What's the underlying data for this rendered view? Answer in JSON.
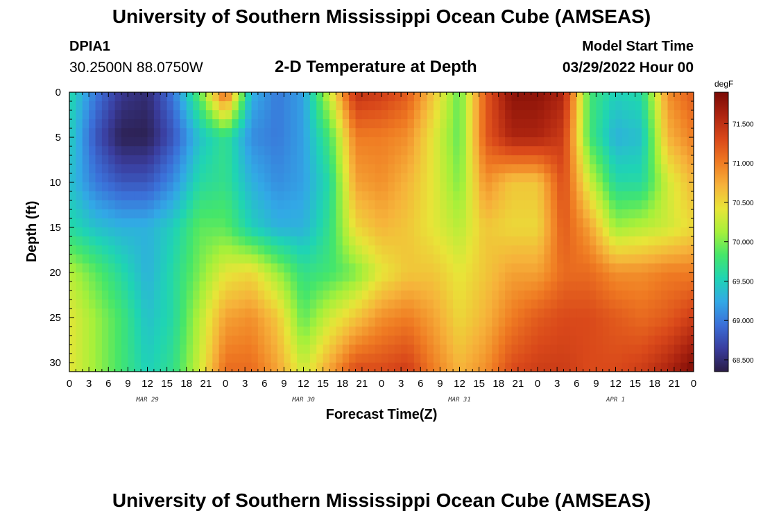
{
  "header": {
    "title": "University of Southern Mississippi Ocean Cube (AMSEAS)",
    "station": "DPIA1",
    "coords": "30.2500N  88.0750W",
    "subtitle": "2-D Temperature at Depth",
    "model_start_label": "Model Start Time",
    "model_start_value": "03/29/2022 Hour 00"
  },
  "footer": {
    "title": "University of Southern Mississippi Ocean Cube (AMSEAS)"
  },
  "colors": {
    "scale": [
      "#2a1c45",
      "#3a3d9e",
      "#3b6fd8",
      "#32a8e6",
      "#1fd4b4",
      "#45e66a",
      "#a6f03a",
      "#e8e538",
      "#f6b23a",
      "#ef7a22",
      "#d9481a",
      "#ad2410",
      "#7a0a05"
    ]
  },
  "chart_data": {
    "type": "heatmap",
    "xlabel": "Forecast Time(Z)",
    "ylabel": "Depth (ft)",
    "x_tick_labels": [
      "0",
      "3",
      "6",
      "9",
      "12",
      "15",
      "18",
      "21",
      "0",
      "3",
      "6",
      "9",
      "12",
      "15",
      "18",
      "21",
      "0",
      "3",
      "6",
      "9",
      "12",
      "15",
      "18",
      "21",
      "0",
      "3",
      "6",
      "9",
      "12",
      "15",
      "18",
      "21",
      "0"
    ],
    "day_labels": [
      {
        "label": "MAR 29",
        "hour": 12
      },
      {
        "label": "MAR 30",
        "hour": 36
      },
      {
        "label": "MAR 31",
        "hour": 60
      },
      {
        "label": "APR 1",
        "hour": 84
      }
    ],
    "x_range_hours": [
      0,
      96
    ],
    "y_ticks": [
      0,
      5,
      10,
      15,
      20,
      25,
      30
    ],
    "y_range_ft": [
      0,
      31
    ],
    "colorbar": {
      "unit": "degF",
      "min": 68.35,
      "max": 71.9,
      "ticks": [
        "68.500",
        "69.000",
        "69.500",
        "70.000",
        "70.500",
        "71.000",
        "71.500"
      ]
    },
    "hours": [
      0,
      4,
      8,
      12,
      16,
      20,
      24,
      28,
      32,
      36,
      40,
      44,
      48,
      52,
      56,
      60,
      64,
      68,
      72,
      76,
      80,
      84,
      88,
      92,
      96
    ],
    "depths_ft": [
      0,
      5,
      10,
      15,
      20,
      25,
      31
    ],
    "values_degF": [
      [
        69.6,
        69.0,
        68.6,
        68.5,
        69.0,
        69.9,
        71.2,
        69.3,
        69.0,
        69.2,
        70.3,
        71.5,
        71.4,
        71.2,
        70.6,
        69.9,
        71.2,
        71.8,
        71.8,
        71.6,
        69.8,
        69.5,
        69.6,
        70.9,
        71.2
      ],
      [
        69.5,
        68.8,
        68.4,
        68.4,
        68.8,
        69.4,
        69.7,
        69.1,
        69.0,
        69.2,
        69.8,
        71.0,
        71.0,
        70.9,
        70.4,
        69.9,
        71.2,
        71.6,
        71.6,
        71.4,
        69.8,
        69.3,
        69.4,
        70.7,
        71.0
      ],
      [
        69.4,
        69.0,
        68.8,
        68.8,
        69.1,
        69.6,
        69.7,
        69.3,
        69.1,
        69.2,
        69.6,
        70.8,
        70.9,
        70.7,
        70.4,
        70.0,
        70.9,
        70.6,
        70.6,
        71.3,
        70.3,
        69.6,
        69.6,
        70.3,
        70.7
      ],
      [
        69.6,
        69.4,
        69.3,
        69.3,
        69.5,
        69.9,
        69.9,
        69.5,
        69.3,
        69.3,
        69.7,
        70.5,
        70.7,
        70.6,
        70.4,
        70.2,
        70.6,
        70.5,
        70.5,
        71.2,
        70.8,
        70.1,
        70.2,
        70.3,
        70.5
      ],
      [
        70.2,
        69.9,
        69.6,
        69.3,
        69.6,
        70.0,
        70.4,
        70.5,
        70.1,
        69.7,
        69.8,
        70.0,
        70.4,
        70.6,
        70.6,
        70.4,
        70.6,
        70.8,
        70.8,
        71.1,
        71.1,
        70.9,
        70.9,
        71.0,
        71.0
      ],
      [
        70.4,
        70.1,
        69.8,
        69.4,
        69.6,
        70.2,
        70.8,
        70.9,
        70.6,
        69.9,
        70.3,
        70.6,
        70.9,
        71.0,
        70.8,
        70.5,
        70.7,
        71.0,
        71.2,
        71.3,
        71.3,
        71.2,
        71.1,
        71.2,
        71.4
      ],
      [
        70.4,
        70.1,
        69.8,
        69.5,
        69.7,
        70.3,
        71.1,
        71.1,
        70.8,
        70.3,
        70.8,
        71.3,
        71.3,
        71.4,
        71.0,
        70.7,
        70.9,
        71.3,
        71.4,
        71.4,
        71.3,
        71.3,
        71.4,
        71.6,
        71.9
      ]
    ]
  }
}
